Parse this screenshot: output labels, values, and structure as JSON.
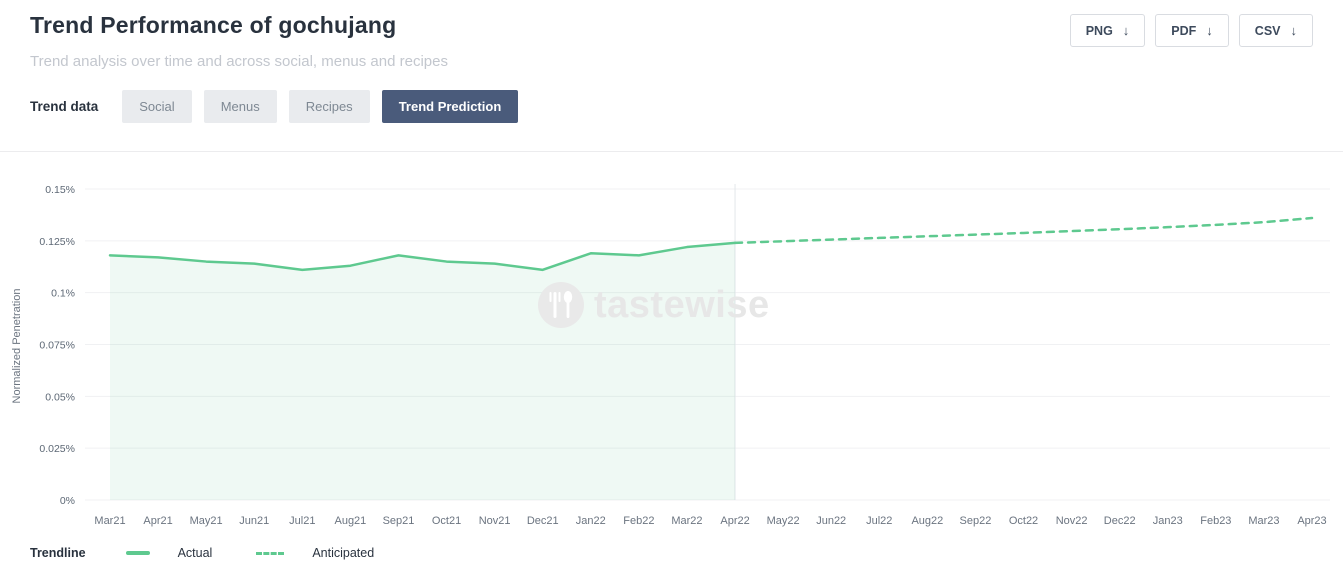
{
  "header": {
    "title": "Trend Performance of gochujang",
    "subtitle": "Trend analysis over time and across social, menus and recipes",
    "export_buttons": [
      {
        "label": "PNG",
        "icon": "download-arrow"
      },
      {
        "label": "PDF",
        "icon": "download-arrow"
      },
      {
        "label": "CSV",
        "icon": "download-arrow"
      }
    ],
    "download_glyph": "↓"
  },
  "tabs": {
    "label": "Trend data",
    "items": [
      {
        "label": "Social",
        "active": false
      },
      {
        "label": "Menus",
        "active": false
      },
      {
        "label": "Recipes",
        "active": false
      },
      {
        "label": "Trend Prediction",
        "active": true
      }
    ]
  },
  "watermark": "tastewise",
  "legend": {
    "label": "Trendline",
    "items": [
      {
        "label": "Actual",
        "style": "solid"
      },
      {
        "label": "Anticipated",
        "style": "dashed"
      }
    ]
  },
  "chart_data": {
    "type": "line",
    "title": "",
    "xlabel": "",
    "ylabel": "Normalized Penetration",
    "ylim": [
      0,
      0.15
    ],
    "yticks": [
      "0%",
      "0.025%",
      "0.05%",
      "0.075%",
      "0.1%",
      "0.125%",
      "0.15%"
    ],
    "ytick_values": [
      0,
      0.025,
      0.05,
      0.075,
      0.1,
      0.125,
      0.15
    ],
    "grid": "horizontal",
    "legend_position": "bottom-left",
    "categories": [
      "Mar21",
      "Apr21",
      "May21",
      "Jun21",
      "Jul21",
      "Aug21",
      "Sep21",
      "Oct21",
      "Nov21",
      "Dec21",
      "Jan22",
      "Feb22",
      "Mar22",
      "Apr22",
      "May22",
      "Jun22",
      "Jul22",
      "Aug22",
      "Sep22",
      "Oct22",
      "Nov22",
      "Dec22",
      "Jan23",
      "Feb23",
      "Mar23",
      "Apr23"
    ],
    "series": [
      {
        "name": "Actual",
        "style": "solid",
        "values": [
          0.118,
          0.117,
          0.115,
          0.114,
          0.111,
          0.113,
          0.118,
          0.115,
          0.114,
          0.111,
          0.119,
          0.118,
          0.122,
          0.124,
          null,
          null,
          null,
          null,
          null,
          null,
          null,
          null,
          null,
          null,
          null,
          null
        ]
      },
      {
        "name": "Anticipated",
        "style": "dashed",
        "values": [
          null,
          null,
          null,
          null,
          null,
          null,
          null,
          null,
          null,
          null,
          null,
          null,
          null,
          0.124,
          0.1248,
          0.1256,
          0.1264,
          0.1272,
          0.128,
          0.1288,
          0.1297,
          0.1306,
          0.1316,
          0.1327,
          0.134,
          0.136
        ]
      }
    ],
    "colors": {
      "line": "#5ec98f",
      "area": "rgba(94,201,143,0.10)",
      "grid": "#f0f1f3",
      "divider": "#e3e7ea",
      "active_tab": "#4a5b7b"
    }
  }
}
